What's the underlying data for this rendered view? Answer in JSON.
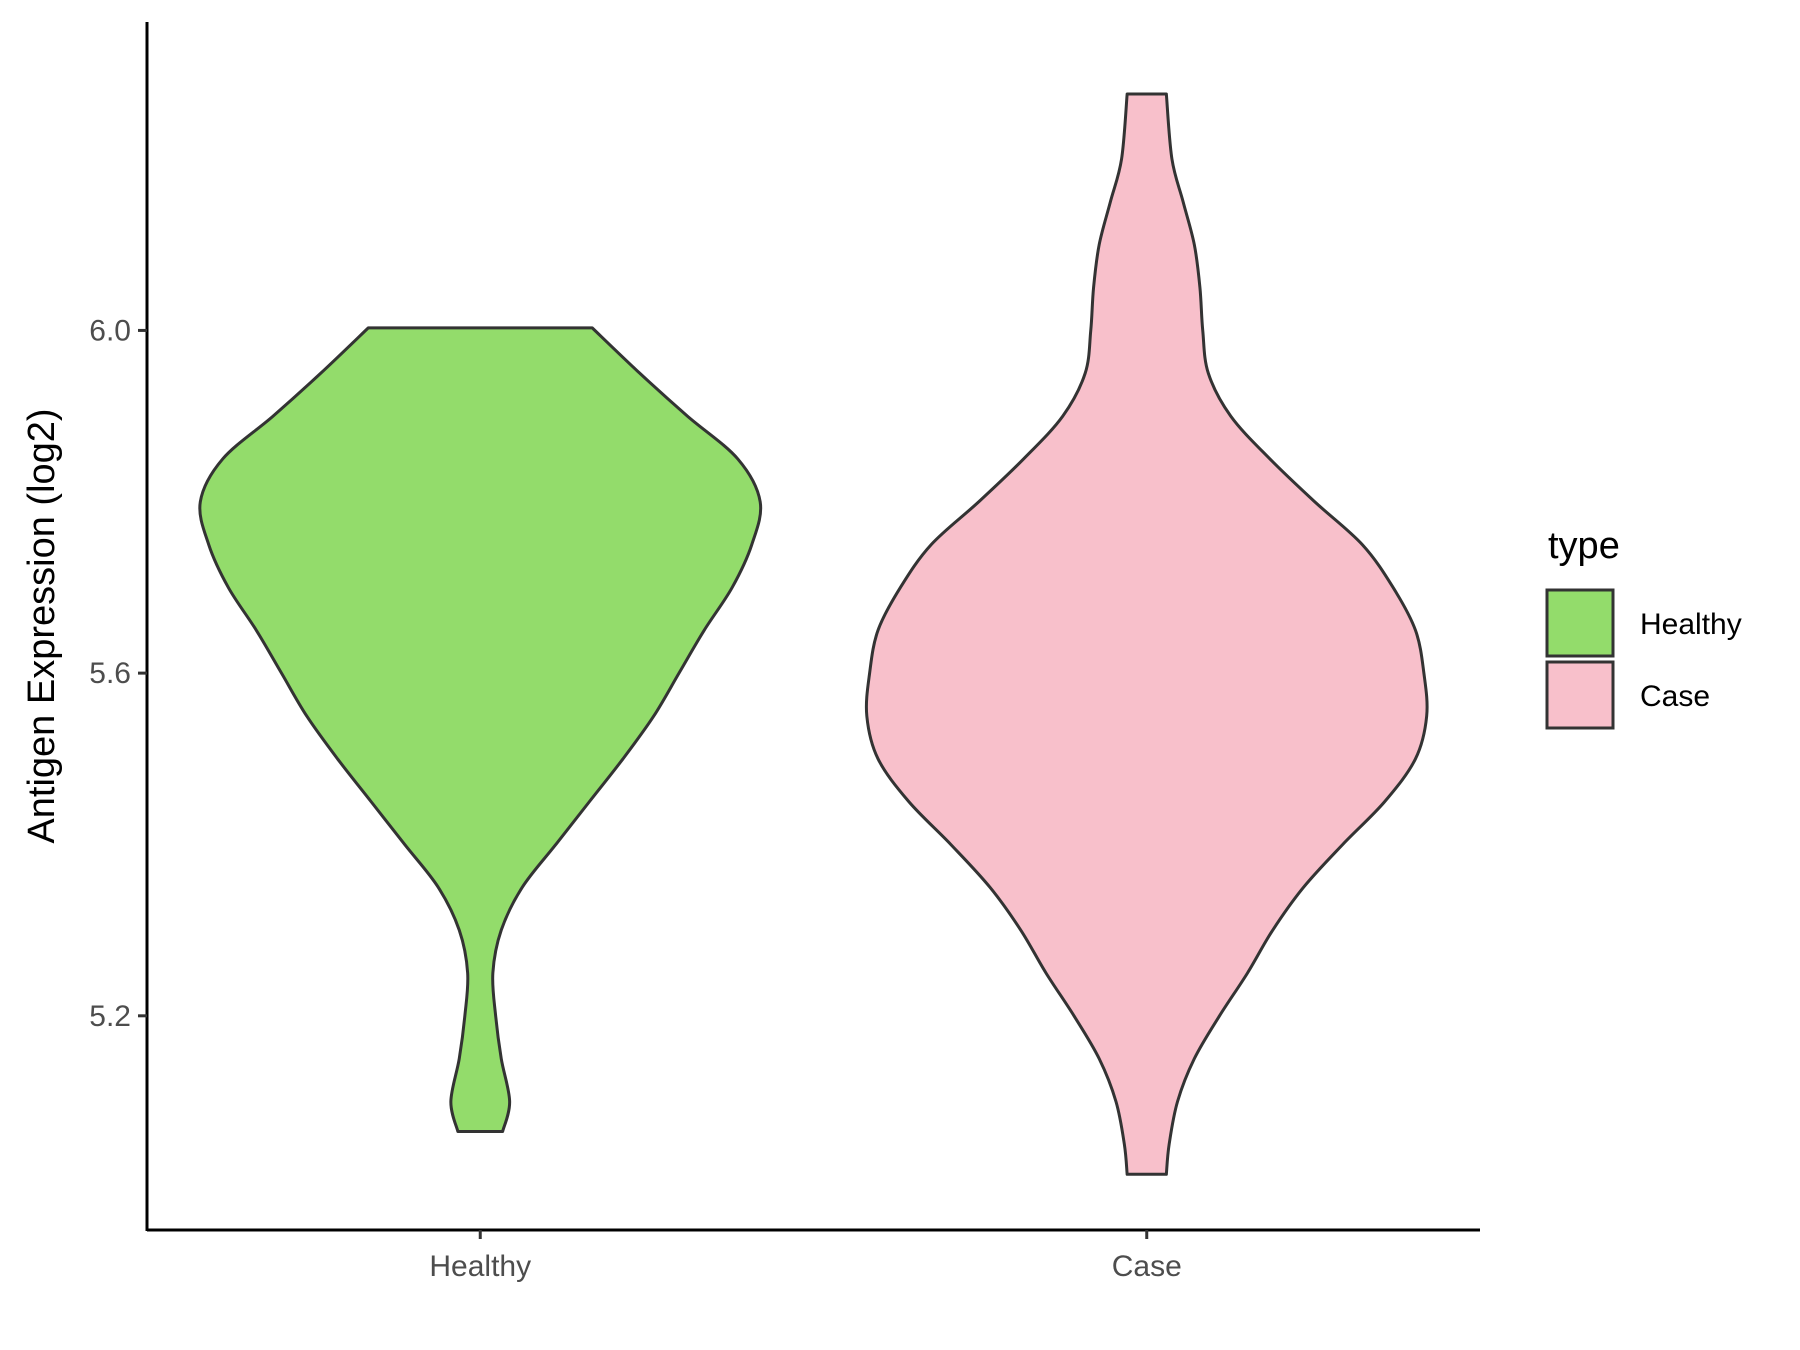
{
  "chart_data": {
    "type": "violin",
    "categories": [
      "Healthy",
      "Case"
    ],
    "ylabel": "Antigen Expression (log2)",
    "xlabel": "",
    "ylim": [
      4.95,
      6.36
    ],
    "yticks": [
      5.2,
      5.6,
      6.0
    ],
    "ytick_labels": [
      "5.2",
      "5.6",
      "6.0"
    ],
    "grid": false,
    "legend": {
      "title": "type",
      "placement": "right",
      "entries": [
        "Healthy",
        "Case"
      ]
    },
    "colors": {
      "Healthy": "#93dc6b",
      "Case": "#f8c0cb",
      "outline": "#333333"
    },
    "series": [
      {
        "category": "Healthy",
        "min": 5.065,
        "max": 6.003,
        "density_profile": [
          [
            5.065,
            0.08
          ],
          [
            5.1,
            0.105
          ],
          [
            5.15,
            0.075
          ],
          [
            5.2,
            0.055
          ],
          [
            5.25,
            0.045
          ],
          [
            5.3,
            0.075
          ],
          [
            5.35,
            0.15
          ],
          [
            5.4,
            0.27
          ],
          [
            5.45,
            0.39
          ],
          [
            5.5,
            0.51
          ],
          [
            5.55,
            0.62
          ],
          [
            5.6,
            0.71
          ],
          [
            5.65,
            0.8
          ],
          [
            5.7,
            0.9
          ],
          [
            5.75,
            0.97
          ],
          [
            5.8,
            1.0
          ],
          [
            5.85,
            0.92
          ],
          [
            5.9,
            0.74
          ],
          [
            5.95,
            0.57
          ],
          [
            6.003,
            0.4
          ]
        ]
      },
      {
        "category": "Case",
        "min": 5.015,
        "max": 6.276,
        "density_profile": [
          [
            5.015,
            0.07
          ],
          [
            5.05,
            0.08
          ],
          [
            5.1,
            0.11
          ],
          [
            5.15,
            0.17
          ],
          [
            5.2,
            0.26
          ],
          [
            5.25,
            0.36
          ],
          [
            5.3,
            0.45
          ],
          [
            5.35,
            0.56
          ],
          [
            5.4,
            0.7
          ],
          [
            5.45,
            0.85
          ],
          [
            5.5,
            0.96
          ],
          [
            5.55,
            1.0
          ],
          [
            5.6,
            0.99
          ],
          [
            5.65,
            0.96
          ],
          [
            5.7,
            0.88
          ],
          [
            5.75,
            0.77
          ],
          [
            5.8,
            0.6
          ],
          [
            5.85,
            0.44
          ],
          [
            5.9,
            0.3
          ],
          [
            5.95,
            0.22
          ],
          [
            6.0,
            0.2
          ],
          [
            6.05,
            0.19
          ],
          [
            6.1,
            0.17
          ],
          [
            6.15,
            0.13
          ],
          [
            6.2,
            0.09
          ],
          [
            6.276,
            0.07
          ]
        ]
      }
    ]
  }
}
